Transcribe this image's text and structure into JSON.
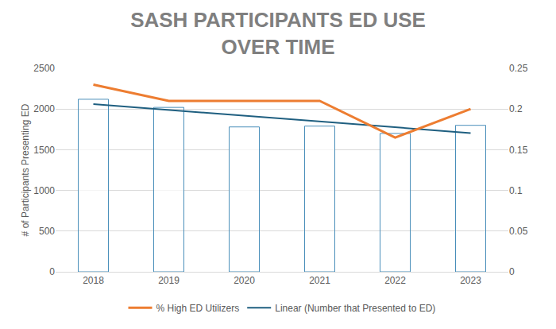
{
  "chart_data": {
    "type": "bar",
    "title": "SASH PARTICIPANTS ED USE OVER TIME",
    "ylabel": "# of Participants Presenting ED",
    "categories": [
      "2018",
      "2019",
      "2020",
      "2021",
      "2022",
      "2023"
    ],
    "series": [
      {
        "type": "bar",
        "color": "#4a8fba",
        "values": [
          2120,
          2020,
          1780,
          1790,
          1700,
          1800
        ]
      },
      {
        "name": "% High ED Utilizers",
        "type": "line",
        "color": "#ed7d31",
        "axis": "y2",
        "values": [
          0.23,
          0.21,
          0.21,
          0.21,
          0.165,
          0.2
        ]
      },
      {
        "name": "Linear (Number that Presented to ED)",
        "type": "line",
        "color": "#1f5f80",
        "values": [
          2060,
          1990,
          1920,
          1850,
          1775,
          1705
        ]
      }
    ],
    "ylim": [
      0,
      2500
    ],
    "yticks": [
      0,
      500,
      1000,
      1500,
      2000,
      2500
    ],
    "y2lim": [
      0,
      0.25
    ],
    "y2ticks": [
      0,
      0.05,
      0.1,
      0.15,
      0.2,
      0.25
    ],
    "grid": true,
    "legend": "bottom"
  }
}
